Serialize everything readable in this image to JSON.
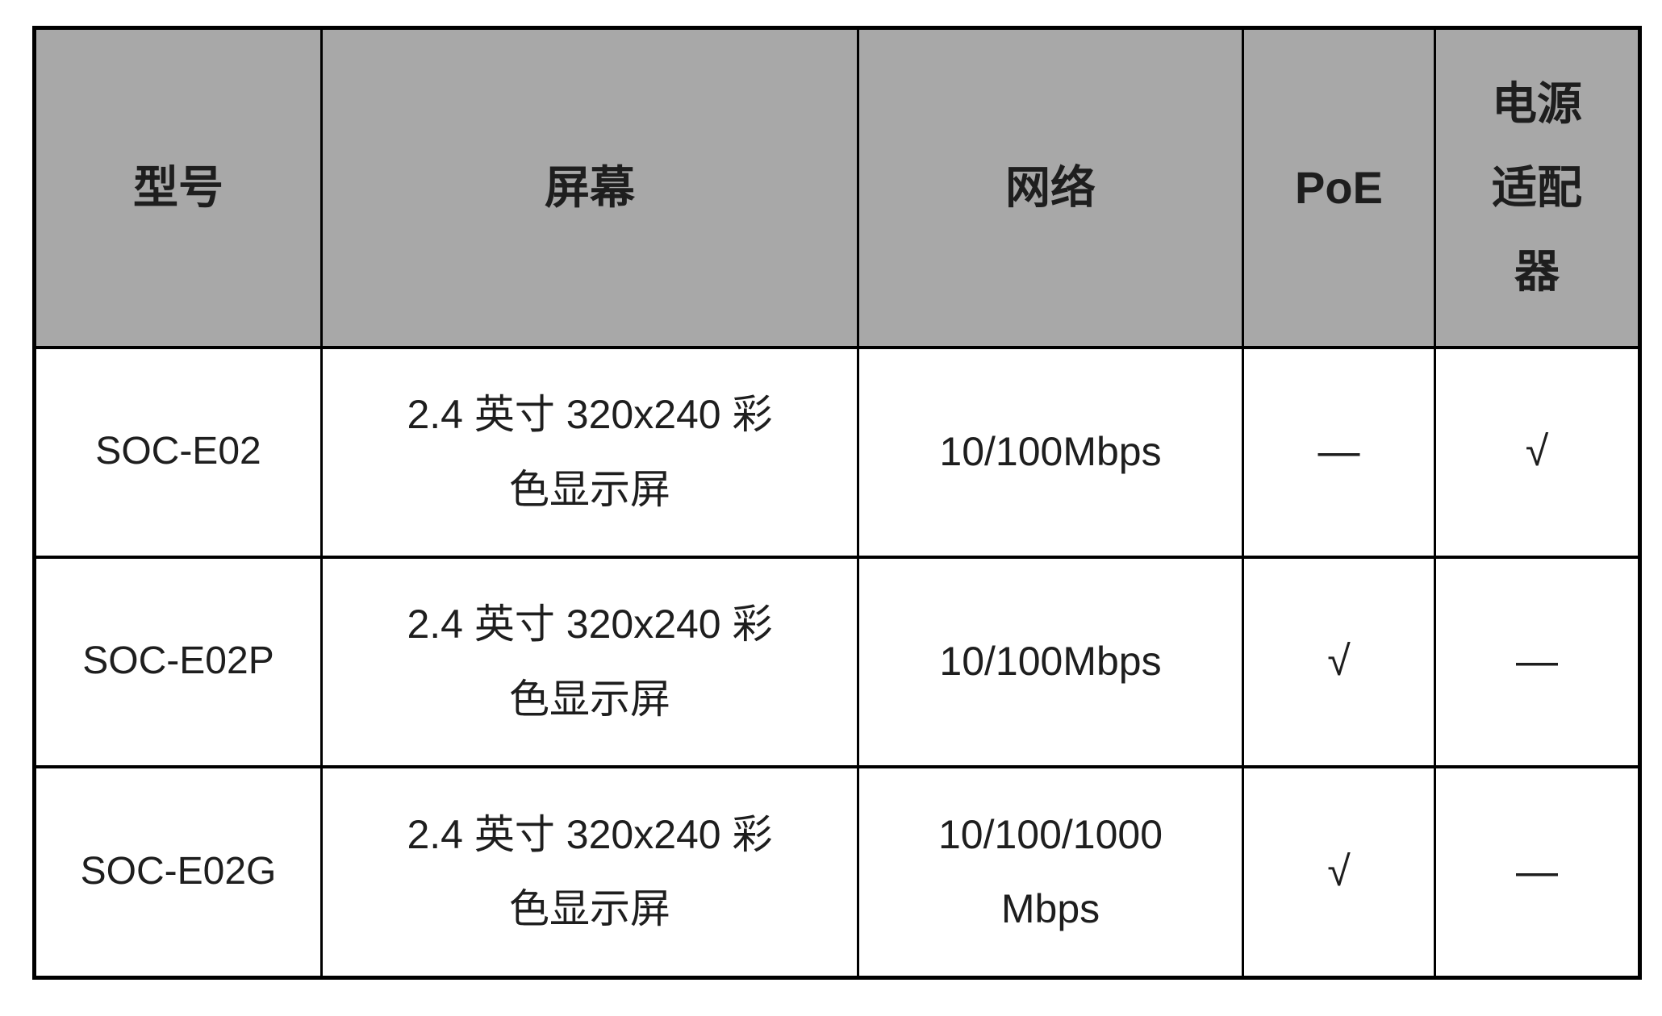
{
  "page": {
    "background": "#ffffff"
  },
  "table": {
    "colors": {
      "header_bg": "#a8a8a8",
      "border": "#000000",
      "text": "#1e1e1e"
    },
    "header": {
      "model": "型号",
      "screen": "屏幕",
      "network": "网络",
      "poe": "PoE",
      "adapter": "电源适配器",
      "adapter_lines": [
        "电源",
        "适配",
        "器"
      ]
    },
    "symbols": {
      "supported": "√",
      "not_supported": "—"
    },
    "rows": [
      {
        "model": "SOC-E02",
        "screen": "2.4 英寸 320x240 彩色显示屏",
        "screen_lines": [
          "2.4 英寸 320x240 彩",
          "色显示屏"
        ],
        "network": "10/100Mbps",
        "network_lines": [
          "10/100Mbps"
        ],
        "poe": "—",
        "adapter": "√"
      },
      {
        "model": "SOC-E02P",
        "screen": "2.4 英寸 320x240 彩色显示屏",
        "screen_lines": [
          "2.4 英寸 320x240 彩",
          "色显示屏"
        ],
        "network": "10/100Mbps",
        "network_lines": [
          "10/100Mbps"
        ],
        "poe": "√",
        "adapter": "—"
      },
      {
        "model": "SOC-E02G",
        "screen": "2.4 英寸 320x240 彩色显示屏",
        "screen_lines": [
          "2.4 英寸 320x240 彩",
          "色显示屏"
        ],
        "network": "10/100/1000 Mbps",
        "network_lines": [
          "10/100/1000",
          "Mbps"
        ],
        "poe": "√",
        "adapter": "—"
      }
    ]
  },
  "chart_data": {
    "type": "table",
    "columns": [
      "型号",
      "屏幕",
      "网络",
      "PoE",
      "电源适配器"
    ],
    "rows": [
      [
        "SOC-E02",
        "2.4 英寸 320x240 彩色显示屏",
        "10/100Mbps",
        "—",
        "√"
      ],
      [
        "SOC-E02P",
        "2.4 英寸 320x240 彩色显示屏",
        "10/100Mbps",
        "√",
        "—"
      ],
      [
        "SOC-E02G",
        "2.4 英寸 320x240 彩色显示屏",
        "10/100/1000 Mbps",
        "√",
        "—"
      ]
    ]
  }
}
